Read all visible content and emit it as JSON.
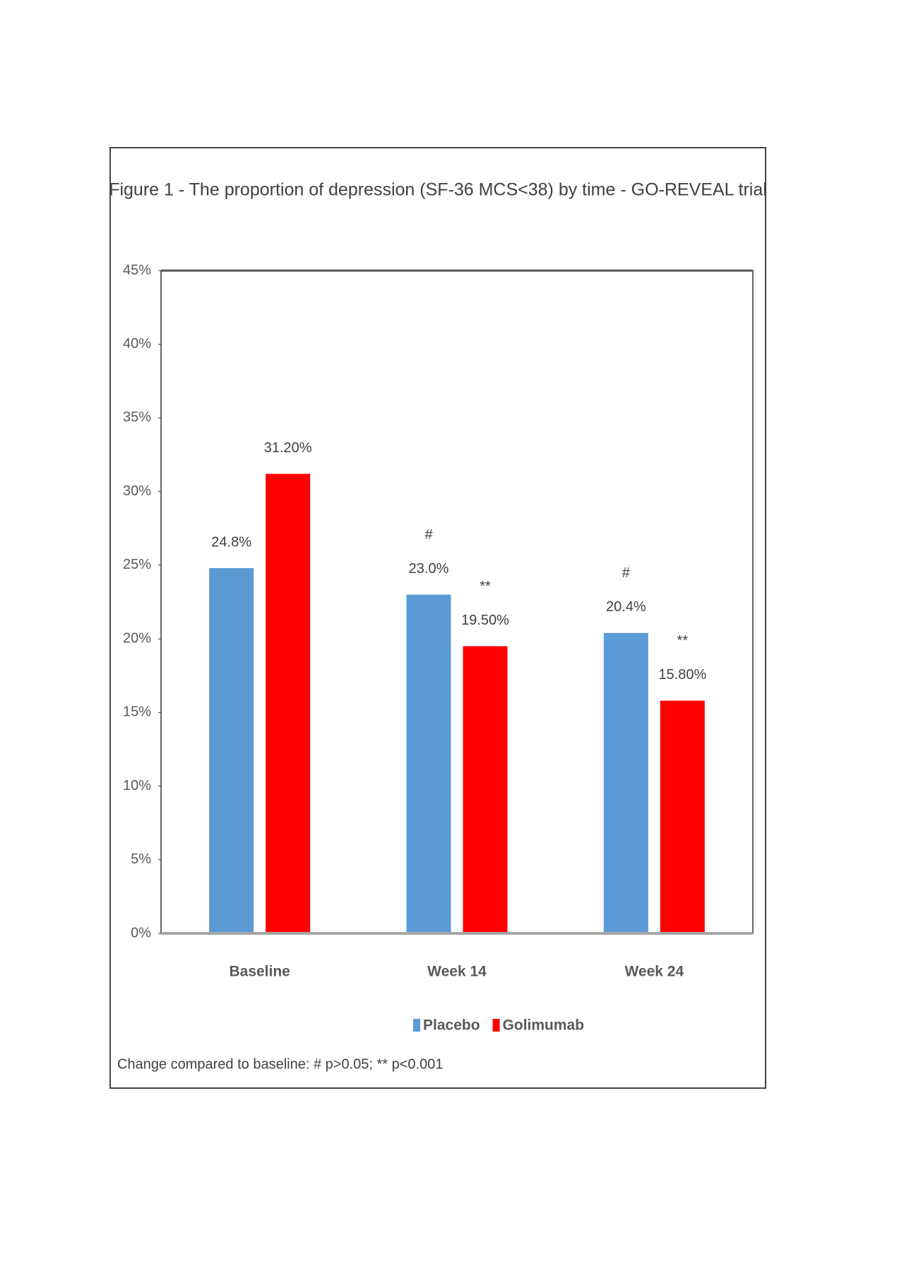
{
  "chart_data": {
    "type": "bar",
    "title": "Figure 1 - The proportion of depression (SF-36 MCS<38) by time - GO-REVEAL trial",
    "categories": [
      "Baseline",
      "Week 14",
      "Week 24"
    ],
    "series": [
      {
        "name": "Placebo",
        "color": "#5b9bd5",
        "values": [
          24.8,
          23.0,
          20.4
        ],
        "value_labels": [
          "24.8%",
          "23.0%",
          "20.4%"
        ],
        "annotations": [
          null,
          "#",
          "#"
        ]
      },
      {
        "name": "Golimumab",
        "color": "#ff0000",
        "values": [
          31.2,
          19.5,
          15.8
        ],
        "value_labels": [
          "31.20%",
          "19.50%",
          "15.80%"
        ],
        "annotations": [
          null,
          "**",
          "**"
        ]
      }
    ],
    "ylim": [
      0,
      45
    ],
    "yticks": [
      {
        "value": 0,
        "label": "0%"
      },
      {
        "value": 5,
        "label": "5%"
      },
      {
        "value": 10,
        "label": "10%"
      },
      {
        "value": 15,
        "label": "15%"
      },
      {
        "value": 20,
        "label": "20%"
      },
      {
        "value": 25,
        "label": "25%"
      },
      {
        "value": 30,
        "label": "30%"
      },
      {
        "value": 35,
        "label": "35%"
      },
      {
        "value": 40,
        "label": "40%"
      },
      {
        "value": 45,
        "label": "45%"
      }
    ],
    "grid": false,
    "legend": "bottom",
    "footnote": "Change compared to baseline: # p>0.05; ** p<0.001"
  }
}
